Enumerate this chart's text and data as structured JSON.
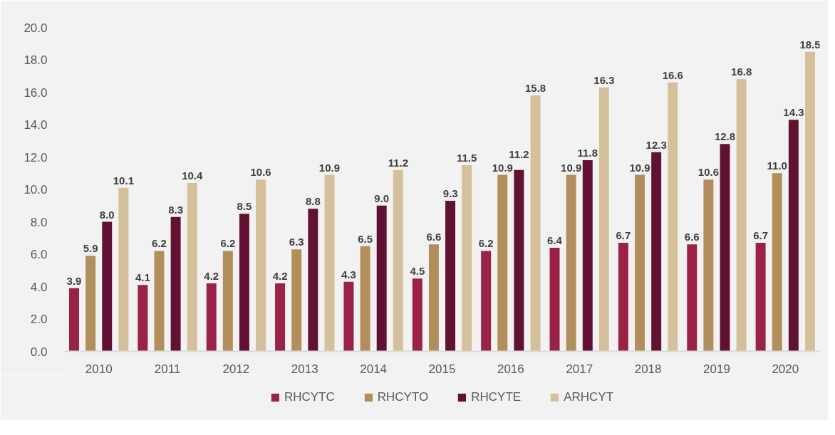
{
  "chart_data": {
    "type": "bar",
    "categories": [
      "2010",
      "2011",
      "2012",
      "2013",
      "2014",
      "2015",
      "2016",
      "2017",
      "2018",
      "2019",
      "2020"
    ],
    "series": [
      {
        "name": "RHCYTC",
        "color": "#9b2247",
        "values": [
          3.9,
          4.1,
          4.2,
          4.2,
          4.3,
          4.5,
          6.2,
          6.4,
          6.7,
          6.6,
          6.7
        ],
        "value_labels": [
          "3.9",
          "4.1",
          "4.2",
          "4.2",
          "4.3",
          "4.5",
          "6.2",
          "6.4",
          "6.7",
          "6.6",
          "6.7"
        ]
      },
      {
        "name": "RHCYTO",
        "color": "#b38e5d",
        "values": [
          5.9,
          6.2,
          6.2,
          6.3,
          6.5,
          6.6,
          10.9,
          10.9,
          10.9,
          10.6,
          11.0
        ],
        "value_labels": [
          "5.9",
          "6.2",
          "6.2",
          "6.3",
          "6.5",
          "6.6",
          "10.9",
          "10.9",
          "10.9",
          "10.6",
          "11.0"
        ]
      },
      {
        "name": "RHCYTE",
        "color": "#611232",
        "values": [
          8.0,
          8.3,
          8.5,
          8.8,
          9.0,
          9.3,
          11.2,
          11.8,
          12.3,
          12.8,
          14.3
        ],
        "value_labels": [
          "8.0",
          "8.3",
          "8.5",
          "8.8",
          "9.0",
          "9.3",
          "11.2",
          "11.8",
          "12.3",
          "12.8",
          "14.3"
        ]
      },
      {
        "name": "ARHCYT",
        "color": "#d4c19c",
        "values": [
          10.1,
          10.4,
          10.6,
          10.9,
          11.2,
          11.5,
          15.8,
          16.3,
          16.6,
          16.8,
          18.5
        ],
        "value_labels": [
          "10.1",
          "10.4",
          "10.6",
          "10.9",
          "11.2",
          "11.5",
          "15.8",
          "16.3",
          "16.6",
          "16.8",
          "18.5"
        ]
      }
    ],
    "ylim": [
      0,
      20
    ],
    "yticks": [
      {
        "value": 0,
        "label": "0.0"
      },
      {
        "value": 2,
        "label": "2.0"
      },
      {
        "value": 4,
        "label": "4.0"
      },
      {
        "value": 6,
        "label": "6.0"
      },
      {
        "value": 8,
        "label": "8.0"
      },
      {
        "value": 10,
        "label": "10.0"
      },
      {
        "value": 12,
        "label": "12.0"
      },
      {
        "value": 14,
        "label": "14.0"
      },
      {
        "value": 16,
        "label": "16.0"
      },
      {
        "value": 18,
        "label": "18.0"
      },
      {
        "value": 20,
        "label": "20.0"
      }
    ],
    "grid": false,
    "legend": "bottom"
  }
}
